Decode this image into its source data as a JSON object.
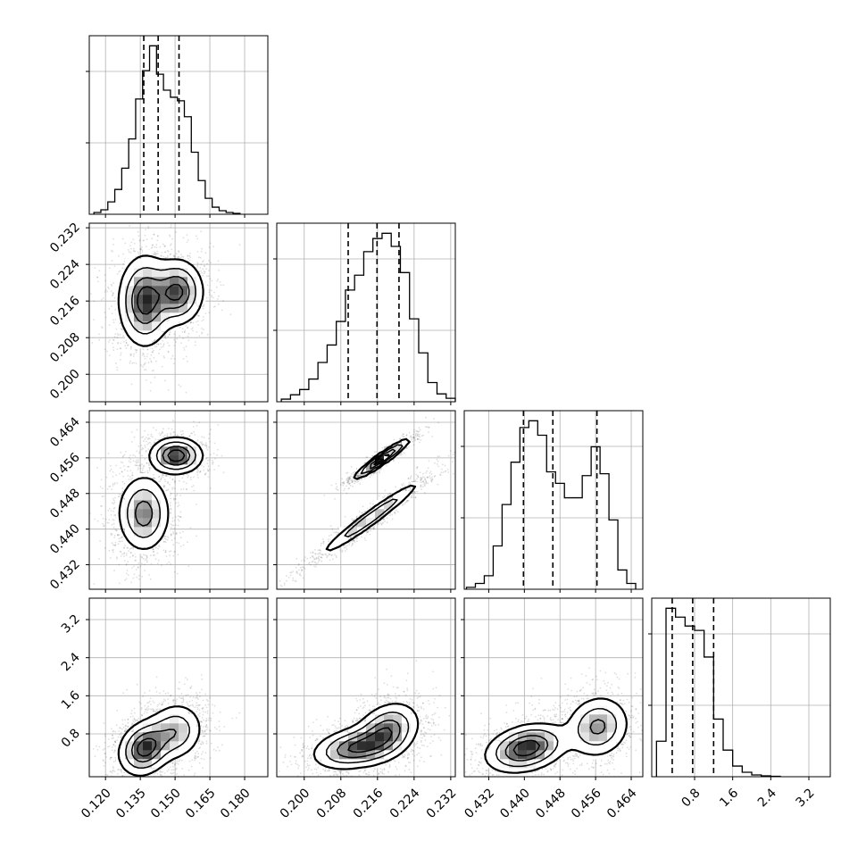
{
  "chart_data": {
    "type": "corner",
    "grid": true,
    "parameters": [
      {
        "range": [
          0.113,
          0.19
        ],
        "ticks": [
          0.12,
          0.135,
          0.15,
          0.165,
          0.18
        ],
        "tick_labels": [
          "0.120",
          "0.135",
          "0.150",
          "0.165",
          "0.180"
        ]
      },
      {
        "range": [
          0.194,
          0.233
        ],
        "ticks": [
          0.2,
          0.208,
          0.216,
          0.224,
          0.232
        ],
        "tick_labels": [
          "0.200",
          "0.208",
          "0.216",
          "0.224",
          "0.232"
        ]
      },
      {
        "range": [
          0.4265,
          0.4666
        ],
        "ticks": [
          0.432,
          0.44,
          0.448,
          0.456,
          0.464
        ],
        "tick_labels": [
          "0.432",
          "0.440",
          "0.448",
          "0.456",
          "0.464"
        ]
      },
      {
        "range": [
          -0.1,
          3.65
        ],
        "ticks": [
          0.8,
          1.6,
          2.4,
          3.2
        ],
        "tick_labels": [
          "0.8",
          "1.6",
          "2.4",
          "3.2"
        ]
      }
    ],
    "histograms": [
      {
        "parameter": 0,
        "quantiles": [
          0.1365,
          0.1427,
          0.1517
        ],
        "bins": [
          0.115,
          0.118,
          0.121,
          0.124,
          0.127,
          0.13,
          0.133,
          0.136,
          0.139,
          0.142,
          0.145,
          0.148,
          0.151,
          0.154,
          0.157,
          0.16,
          0.163,
          0.166,
          0.169,
          0.172,
          0.175,
          0.178
        ],
        "values": [
          2,
          5,
          14,
          28,
          52,
          85,
          130,
          162,
          190,
          158,
          140,
          132,
          128,
          110,
          70,
          38,
          18,
          8,
          4,
          2,
          1
        ]
      },
      {
        "parameter": 1,
        "quantiles": [
          0.2096,
          0.2159,
          0.2207
        ],
        "bins": [
          0.195,
          0.197,
          0.199,
          0.201,
          0.203,
          0.205,
          0.207,
          0.209,
          0.211,
          0.213,
          0.215,
          0.217,
          0.219,
          0.221,
          0.223,
          0.225,
          0.227,
          0.229,
          0.231,
          0.233
        ],
        "values": [
          3,
          8,
          14,
          26,
          45,
          65,
          92,
          128,
          145,
          172,
          187,
          193,
          178,
          148,
          95,
          56,
          22,
          9,
          4
        ]
      },
      {
        "parameter": 2,
        "quantiles": [
          0.4398,
          0.4464,
          0.4563
        ],
        "bins": [
          0.427,
          0.429,
          0.431,
          0.433,
          0.435,
          0.437,
          0.439,
          0.441,
          0.443,
          0.445,
          0.447,
          0.449,
          0.451,
          0.453,
          0.455,
          0.457,
          0.459,
          0.461,
          0.463,
          0.465
        ],
        "values": [
          2,
          6,
          14,
          45,
          88,
          132,
          168,
          175,
          160,
          122,
          110,
          95,
          95,
          118,
          148,
          120,
          72,
          20,
          6
        ]
      },
      {
        "parameter": 3,
        "quantiles": [
          0.33,
          0.76,
          1.2
        ],
        "bins": [
          0.0,
          0.2,
          0.4,
          0.6,
          0.8,
          1.0,
          1.2,
          1.4,
          1.6,
          1.8,
          2.0,
          2.2,
          2.4,
          2.6
        ],
        "values": [
          40,
          190,
          180,
          170,
          165,
          135,
          65,
          30,
          12,
          5,
          2,
          1,
          0.5
        ]
      }
    ],
    "pairs": [
      {
        "x": 0,
        "y": 1,
        "modes": [
          {
            "cx": 0.137,
            "cy": 0.216,
            "sx": 0.0055,
            "sy": 0.0048,
            "rho": 0.0,
            "w": 0.6
          },
          {
            "cx": 0.151,
            "cy": 0.218,
            "sx": 0.0055,
            "sy": 0.0035,
            "rho": 0.0,
            "w": 0.4
          }
        ]
      },
      {
        "x": 0,
        "y": 2,
        "modes": [
          {
            "cx": 0.1365,
            "cy": 0.4435,
            "sx": 0.0055,
            "sy": 0.0042,
            "rho": 0.0,
            "w": 0.6
          },
          {
            "cx": 0.1505,
            "cy": 0.4565,
            "sx": 0.0055,
            "sy": 0.002,
            "rho": 0.0,
            "w": 0.4
          }
        ]
      },
      {
        "x": 1,
        "y": 2,
        "modes": [
          {
            "cx": 0.2145,
            "cy": 0.4425,
            "sx": 0.0055,
            "sy": 0.0042,
            "rho": 0.97,
            "w": 0.6
          },
          {
            "cx": 0.217,
            "cy": 0.4558,
            "sx": 0.003,
            "sy": 0.0022,
            "rho": 0.95,
            "w": 0.4
          }
        ]
      },
      {
        "x": 0,
        "y": 3,
        "modes": [
          {
            "cx": 0.137,
            "cy": 0.5,
            "sx": 0.0055,
            "sy": 0.28,
            "rho": 0.2,
            "w": 0.6
          },
          {
            "cx": 0.15,
            "cy": 0.85,
            "sx": 0.006,
            "sy": 0.3,
            "rho": 0.1,
            "w": 0.4
          }
        ]
      },
      {
        "x": 1,
        "y": 3,
        "modes": [
          {
            "cx": 0.211,
            "cy": 0.5,
            "sx": 0.0045,
            "sy": 0.22,
            "rho": 0.3,
            "w": 0.5
          },
          {
            "cx": 0.218,
            "cy": 0.85,
            "sx": 0.0035,
            "sy": 0.3,
            "rho": 0.3,
            "w": 0.5
          }
        ]
      },
      {
        "x": 2,
        "y": 3,
        "modes": [
          {
            "cx": 0.4405,
            "cy": 0.5,
            "sx": 0.0045,
            "sy": 0.25,
            "rho": 0.3,
            "w": 0.6
          },
          {
            "cx": 0.4565,
            "cy": 0.95,
            "sx": 0.0035,
            "sy": 0.32,
            "rho": 0.1,
            "w": 0.4
          }
        ]
      }
    ]
  }
}
